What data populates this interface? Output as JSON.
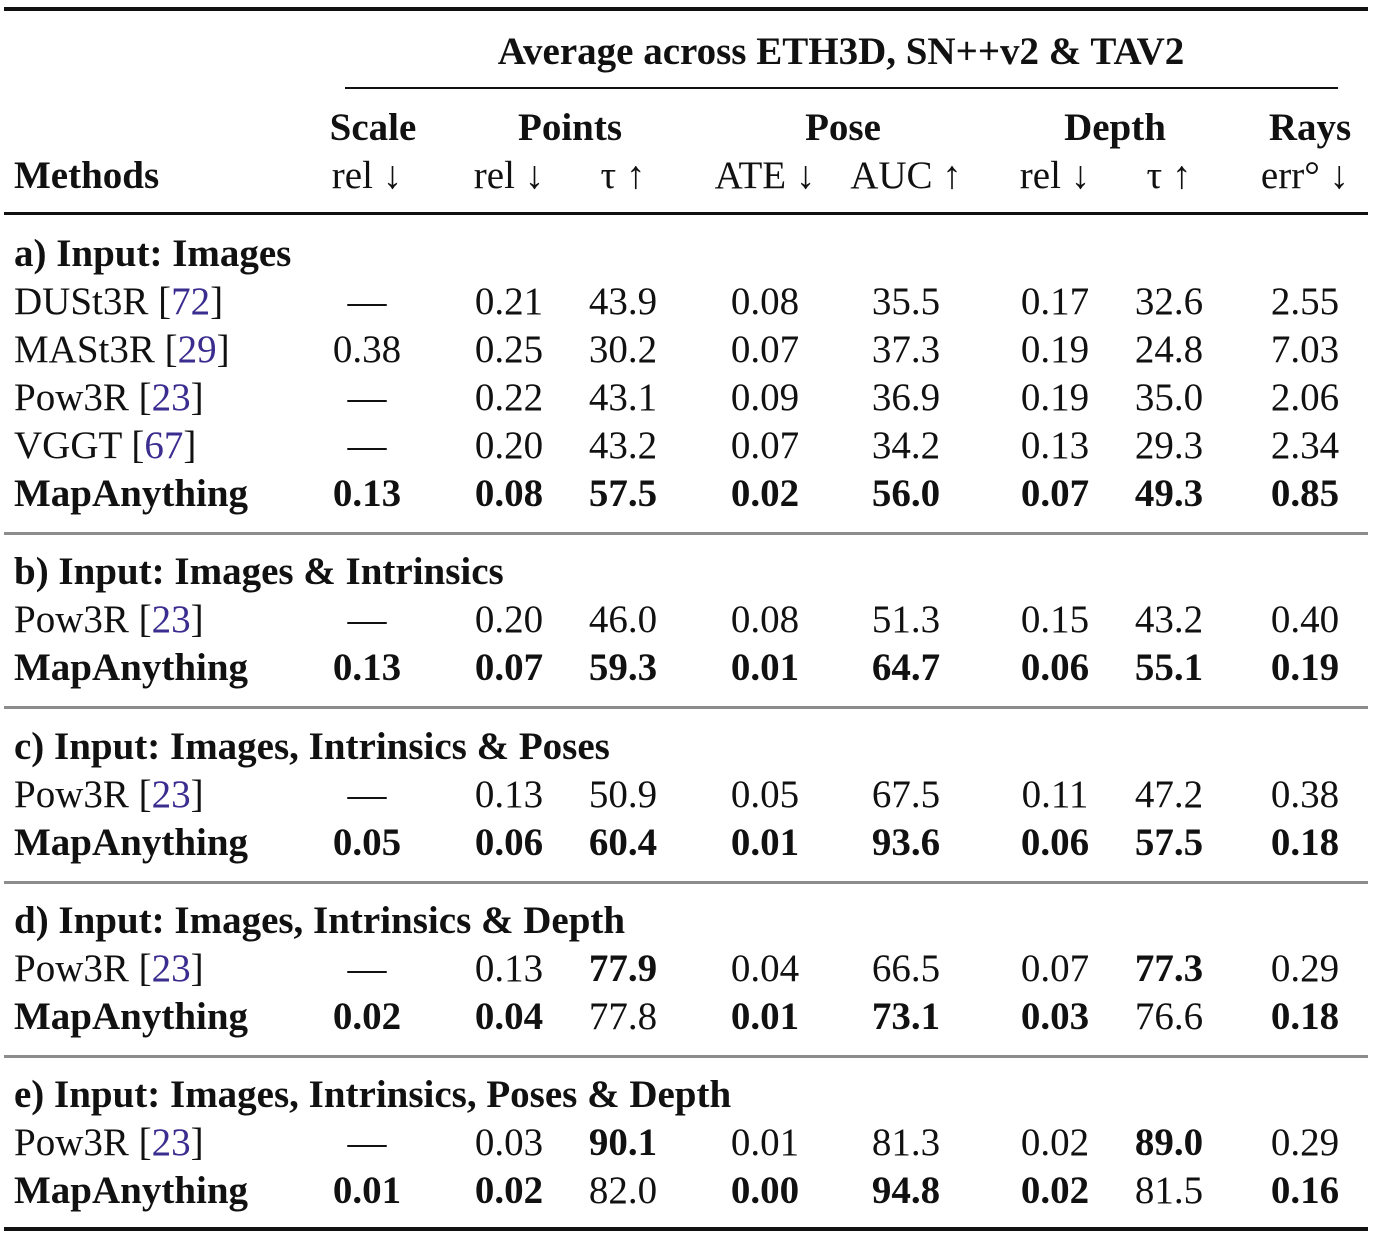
{
  "table": {
    "super_header": "Average across ETH3D, SN++v2 & TAV2",
    "methods_header": "Methods",
    "groups": [
      "Scale",
      "Points",
      "Pose",
      "Depth",
      "Rays"
    ],
    "metrics": [
      "rel ↓",
      "rel ↓",
      "τ ↑",
      "ATE ↓",
      "AUC ↑",
      "rel ↓",
      "τ ↑",
      "err° ↓"
    ],
    "sections": [
      {
        "title": "a) Input: Images",
        "rows": [
          {
            "method": "DUSt3R",
            "ref": "72",
            "values": [
              "—",
              "0.21",
              "43.9",
              "0.08",
              "35.5",
              "0.17",
              "32.6",
              "2.55"
            ],
            "bold": [
              false,
              false,
              false,
              false,
              false,
              false,
              false,
              false
            ]
          },
          {
            "method": "MASt3R",
            "ref": "29",
            "values": [
              "0.38",
              "0.25",
              "30.2",
              "0.07",
              "37.3",
              "0.19",
              "24.8",
              "7.03"
            ],
            "bold": [
              false,
              false,
              false,
              false,
              false,
              false,
              false,
              false
            ]
          },
          {
            "method": "Pow3R",
            "ref": "23",
            "values": [
              "—",
              "0.22",
              "43.1",
              "0.09",
              "36.9",
              "0.19",
              "35.0",
              "2.06"
            ],
            "bold": [
              false,
              false,
              false,
              false,
              false,
              false,
              false,
              false
            ]
          },
          {
            "method": "VGGT",
            "ref": "67",
            "values": [
              "—",
              "0.20",
              "43.2",
              "0.07",
              "34.2",
              "0.13",
              "29.3",
              "2.34"
            ],
            "bold": [
              false,
              false,
              false,
              false,
              false,
              false,
              false,
              false
            ]
          },
          {
            "method": "MapAnything",
            "ref": "",
            "values": [
              "0.13",
              "0.08",
              "57.5",
              "0.02",
              "56.0",
              "0.07",
              "49.3",
              "0.85"
            ],
            "bold": [
              true,
              true,
              true,
              true,
              true,
              true,
              true,
              true
            ],
            "method_bold": true
          }
        ]
      },
      {
        "title": "b) Input: Images & Intrinsics",
        "rows": [
          {
            "method": "Pow3R",
            "ref": "23",
            "values": [
              "—",
              "0.20",
              "46.0",
              "0.08",
              "51.3",
              "0.15",
              "43.2",
              "0.40"
            ],
            "bold": [
              false,
              false,
              false,
              false,
              false,
              false,
              false,
              false
            ]
          },
          {
            "method": "MapAnything",
            "ref": "",
            "values": [
              "0.13",
              "0.07",
              "59.3",
              "0.01",
              "64.7",
              "0.06",
              "55.1",
              "0.19"
            ],
            "bold": [
              true,
              true,
              true,
              true,
              true,
              true,
              true,
              true
            ],
            "method_bold": true
          }
        ]
      },
      {
        "title": "c) Input: Images, Intrinsics & Poses",
        "rows": [
          {
            "method": "Pow3R",
            "ref": "23",
            "values": [
              "—",
              "0.13",
              "50.9",
              "0.05",
              "67.5",
              "0.11",
              "47.2",
              "0.38"
            ],
            "bold": [
              false,
              false,
              false,
              false,
              false,
              false,
              false,
              false
            ]
          },
          {
            "method": "MapAnything",
            "ref": "",
            "values": [
              "0.05",
              "0.06",
              "60.4",
              "0.01",
              "93.6",
              "0.06",
              "57.5",
              "0.18"
            ],
            "bold": [
              true,
              true,
              true,
              true,
              true,
              true,
              true,
              true
            ],
            "method_bold": true
          }
        ]
      },
      {
        "title": "d) Input: Images, Intrinsics & Depth",
        "rows": [
          {
            "method": "Pow3R",
            "ref": "23",
            "values": [
              "—",
              "0.13",
              "77.9",
              "0.04",
              "66.5",
              "0.07",
              "77.3",
              "0.29"
            ],
            "bold": [
              false,
              false,
              true,
              false,
              false,
              false,
              true,
              false
            ]
          },
          {
            "method": "MapAnything",
            "ref": "",
            "values": [
              "0.02",
              "0.04",
              "77.8",
              "0.01",
              "73.1",
              "0.03",
              "76.6",
              "0.18"
            ],
            "bold": [
              true,
              true,
              false,
              true,
              true,
              true,
              false,
              true
            ],
            "method_bold": true
          }
        ]
      },
      {
        "title": "e) Input: Images, Intrinsics, Poses & Depth",
        "rows": [
          {
            "method": "Pow3R",
            "ref": "23",
            "values": [
              "—",
              "0.03",
              "90.1",
              "0.01",
              "81.3",
              "0.02",
              "89.0",
              "0.29"
            ],
            "bold": [
              false,
              false,
              true,
              false,
              false,
              false,
              true,
              false
            ]
          },
          {
            "method": "MapAnything",
            "ref": "",
            "values": [
              "0.01",
              "0.02",
              "82.0",
              "0.00",
              "94.8",
              "0.02",
              "81.5",
              "0.16"
            ],
            "bold": [
              true,
              true,
              false,
              true,
              true,
              true,
              false,
              true
            ],
            "method_bold": true
          }
        ]
      }
    ]
  }
}
